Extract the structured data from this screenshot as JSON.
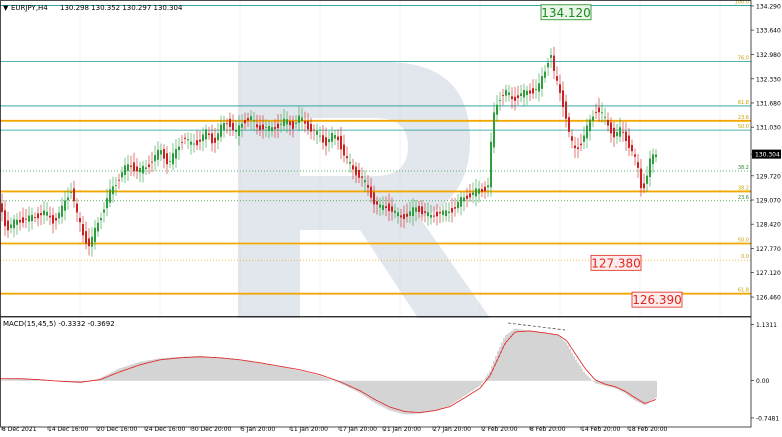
{
  "header": {
    "symbol": "EURJPY,H4",
    "ohlc": "130.298 130.352 130.297 130.304"
  },
  "colors": {
    "background": "#ffffff",
    "axis": "#000000",
    "grid": "#e6e6e6",
    "bull": "#2e9e3e",
    "bear": "#cc2222",
    "fib_teal": "#1a9a9a",
    "fib_orange": "#f3a800",
    "fib_label": "#c8a000",
    "fib_green_label": "#2e8b2e",
    "target_green": "#1f8a1f",
    "target_red": "#e0261c",
    "macd_hist": "#a8a8a8",
    "macd_signal": "#e03030",
    "watermark": "#c9d3df"
  },
  "chart_data": [
    {
      "type": "candlestick",
      "title": "EURJPY,H4",
      "ylim": [
        125.95,
        134.45
      ],
      "y_ticks": [
        "134.290",
        "133.640",
        "132.980",
        "132.330",
        "131.680",
        "131.030",
        "130.304",
        "129.720",
        "129.070",
        "128.420",
        "127.770",
        "127.120",
        "126.460"
      ],
      "y_tick_values": [
        134.29,
        133.64,
        132.98,
        132.33,
        131.68,
        131.03,
        130.304,
        129.72,
        129.07,
        128.42,
        127.77,
        127.12,
        126.46
      ],
      "current_price": "130.304",
      "x_labels": [
        "8 Dec 2021",
        "14 Dec 16:00",
        "20 Dec 16:00",
        "24 Dec 16:00",
        "30 Dec 20:00",
        "5 Jan 20:00",
        "11 Jan 20:00",
        "17 Jan 20:00",
        "21 Jan 20:00",
        "27 Jan 20:00",
        "2 Feb 20:00",
        "8 Feb 20:00",
        "14 Feb 20:00",
        "18 Feb 20:00"
      ],
      "price_path": [
        [
          0,
          129.05
        ],
        [
          8,
          128.3
        ],
        [
          15,
          128.45
        ],
        [
          25,
          128.55
        ],
        [
          35,
          128.6
        ],
        [
          45,
          128.75
        ],
        [
          55,
          128.5
        ],
        [
          63,
          128.8
        ],
        [
          68,
          129.1
        ],
        [
          73,
          129.4
        ],
        [
          78,
          128.7
        ],
        [
          85,
          128.1
        ],
        [
          91,
          127.85
        ],
        [
          96,
          128.2
        ],
        [
          103,
          128.7
        ],
        [
          110,
          129.2
        ],
        [
          118,
          129.55
        ],
        [
          125,
          129.9
        ],
        [
          132,
          130.0
        ],
        [
          140,
          129.85
        ],
        [
          148,
          129.95
        ],
        [
          155,
          130.2
        ],
        [
          162,
          130.4
        ],
        [
          170,
          130.05
        ],
        [
          178,
          130.4
        ],
        [
          185,
          130.8
        ],
        [
          192,
          130.55
        ],
        [
          200,
          130.65
        ],
        [
          208,
          130.9
        ],
        [
          215,
          130.6
        ],
        [
          222,
          131.0
        ],
        [
          230,
          131.2
        ],
        [
          237,
          130.85
        ],
        [
          245,
          131.2
        ],
        [
          252,
          131.3
        ],
        [
          258,
          131.0
        ],
        [
          265,
          131.05
        ],
        [
          272,
          130.95
        ],
        [
          280,
          131.1
        ],
        [
          287,
          131.2
        ],
        [
          294,
          131.05
        ],
        [
          300,
          131.3
        ],
        [
          307,
          131.1
        ],
        [
          314,
          130.95
        ],
        [
          320,
          130.8
        ],
        [
          327,
          130.6
        ],
        [
          333,
          130.8
        ],
        [
          340,
          130.7
        ],
        [
          347,
          130.2
        ],
        [
          354,
          129.9
        ],
        [
          362,
          129.7
        ],
        [
          368,
          129.45
        ],
        [
          375,
          129.05
        ],
        [
          382,
          128.85
        ],
        [
          389,
          128.9
        ],
        [
          395,
          128.75
        ],
        [
          402,
          128.6
        ],
        [
          410,
          128.7
        ],
        [
          418,
          128.85
        ],
        [
          425,
          128.75
        ],
        [
          432,
          128.6
        ],
        [
          440,
          128.75
        ],
        [
          447,
          128.7
        ],
        [
          455,
          128.85
        ],
        [
          462,
          129.05
        ],
        [
          470,
          129.2
        ],
        [
          478,
          129.3
        ],
        [
          485,
          129.35
        ],
        [
          490,
          129.5
        ],
        [
          494,
          131.2
        ],
        [
          500,
          131.8
        ],
        [
          507,
          132.0
        ],
        [
          514,
          131.75
        ],
        [
          520,
          131.9
        ],
        [
          527,
          131.95
        ],
        [
          533,
          132.0
        ],
        [
          540,
          132.1
        ],
        [
          546,
          132.5
        ],
        [
          552,
          133.1
        ],
        [
          556,
          132.4
        ],
        [
          562,
          131.9
        ],
        [
          567,
          131.4
        ],
        [
          572,
          130.65
        ],
        [
          577,
          130.4
        ],
        [
          582,
          130.6
        ],
        [
          587,
          130.9
        ],
        [
          592,
          131.2
        ],
        [
          598,
          131.55
        ],
        [
          604,
          131.35
        ],
        [
          610,
          131.05
        ],
        [
          616,
          130.8
        ],
        [
          622,
          130.95
        ],
        [
          628,
          130.7
        ],
        [
          634,
          130.35
        ],
        [
          639,
          129.95
        ],
        [
          643,
          129.35
        ],
        [
          647,
          129.55
        ],
        [
          651,
          130.1
        ],
        [
          657,
          130.3
        ]
      ],
      "fibonacci": [
        {
          "level": "100.0",
          "price": 134.3,
          "color": "teal",
          "style": "thin"
        },
        {
          "level": "76.0",
          "price": 132.8,
          "color": "teal",
          "style": "thin"
        },
        {
          "level": "61.8",
          "price": 131.6,
          "color": "teal",
          "style": "thin"
        },
        {
          "level": "23.6",
          "price": 131.2,
          "color": "orange",
          "style": "thick"
        },
        {
          "level": "50.0",
          "price": 130.95,
          "color": "teal",
          "style": "thin"
        },
        {
          "level": "38.2",
          "price": 129.85,
          "color": "green",
          "style": "dotted"
        },
        {
          "level": "38.2",
          "price": 129.3,
          "color": "orange",
          "style": "thick"
        },
        {
          "level": "23.6",
          "price": 129.05,
          "color": "green",
          "style": "dotted"
        },
        {
          "level": "50.0",
          "price": 127.9,
          "color": "orange",
          "style": "thick"
        },
        {
          "level": "0.0",
          "price": 127.45,
          "color": "orange",
          "style": "dotted"
        },
        {
          "level": "61.8",
          "price": 126.55,
          "color": "orange",
          "style": "thick"
        }
      ],
      "targets": [
        {
          "label": "134.120",
          "price": 134.12,
          "color": "green"
        },
        {
          "label": "127.380",
          "price": 127.38,
          "color": "red"
        },
        {
          "label": "126.390",
          "price": 126.39,
          "color": "red"
        }
      ]
    },
    {
      "type": "bar",
      "title": "MACD(15,45,5) -0.3332 -0.3692",
      "ylim": [
        -0.85,
        1.2
      ],
      "y_ticks": [
        "1.1311",
        "0.00",
        "-0.7481"
      ],
      "y_tick_values": [
        1.1311,
        0.0,
        -0.7481
      ],
      "macd_path": [
        [
          0,
          0.02
        ],
        [
          20,
          0.05
        ],
        [
          40,
          0.03
        ],
        [
          60,
          -0.02
        ],
        [
          80,
          -0.05
        ],
        [
          100,
          0.05
        ],
        [
          120,
          0.25
        ],
        [
          140,
          0.38
        ],
        [
          160,
          0.45
        ],
        [
          180,
          0.48
        ],
        [
          200,
          0.5
        ],
        [
          220,
          0.46
        ],
        [
          240,
          0.42
        ],
        [
          260,
          0.35
        ],
        [
          280,
          0.28
        ],
        [
          300,
          0.2
        ],
        [
          320,
          0.1
        ],
        [
          340,
          -0.05
        ],
        [
          360,
          -0.25
        ],
        [
          375,
          -0.45
        ],
        [
          390,
          -0.6
        ],
        [
          405,
          -0.68
        ],
        [
          420,
          -0.66
        ],
        [
          435,
          -0.6
        ],
        [
          450,
          -0.5
        ],
        [
          465,
          -0.3
        ],
        [
          480,
          -0.1
        ],
        [
          490,
          0.2
        ],
        [
          497,
          0.55
        ],
        [
          505,
          0.9
        ],
        [
          515,
          1.05
        ],
        [
          530,
          1.0
        ],
        [
          545,
          0.95
        ],
        [
          558,
          0.92
        ],
        [
          567,
          0.75
        ],
        [
          575,
          0.45
        ],
        [
          585,
          0.15
        ],
        [
          595,
          -0.05
        ],
        [
          605,
          -0.1
        ],
        [
          615,
          -0.15
        ],
        [
          625,
          -0.25
        ],
        [
          635,
          -0.4
        ],
        [
          645,
          -0.5
        ],
        [
          657,
          -0.33
        ]
      ],
      "signal_path": [
        [
          0,
          0.04
        ],
        [
          20,
          0.04
        ],
        [
          40,
          0.02
        ],
        [
          60,
          -0.01
        ],
        [
          80,
          -0.03
        ],
        [
          100,
          0.02
        ],
        [
          120,
          0.18
        ],
        [
          140,
          0.32
        ],
        [
          160,
          0.42
        ],
        [
          180,
          0.46
        ],
        [
          200,
          0.48
        ],
        [
          220,
          0.46
        ],
        [
          240,
          0.42
        ],
        [
          260,
          0.36
        ],
        [
          280,
          0.29
        ],
        [
          300,
          0.22
        ],
        [
          320,
          0.12
        ],
        [
          340,
          -0.02
        ],
        [
          360,
          -0.2
        ],
        [
          375,
          -0.38
        ],
        [
          390,
          -0.53
        ],
        [
          405,
          -0.62
        ],
        [
          420,
          -0.64
        ],
        [
          435,
          -0.6
        ],
        [
          450,
          -0.52
        ],
        [
          465,
          -0.34
        ],
        [
          480,
          -0.15
        ],
        [
          490,
          0.1
        ],
        [
          497,
          0.4
        ],
        [
          505,
          0.75
        ],
        [
          515,
          0.98
        ],
        [
          530,
          1.0
        ],
        [
          545,
          0.96
        ],
        [
          558,
          0.92
        ],
        [
          567,
          0.8
        ],
        [
          575,
          0.55
        ],
        [
          585,
          0.25
        ],
        [
          595,
          0.02
        ],
        [
          605,
          -0.07
        ],
        [
          615,
          -0.12
        ],
        [
          625,
          -0.21
        ],
        [
          635,
          -0.34
        ],
        [
          645,
          -0.46
        ],
        [
          657,
          -0.37
        ]
      ]
    }
  ]
}
